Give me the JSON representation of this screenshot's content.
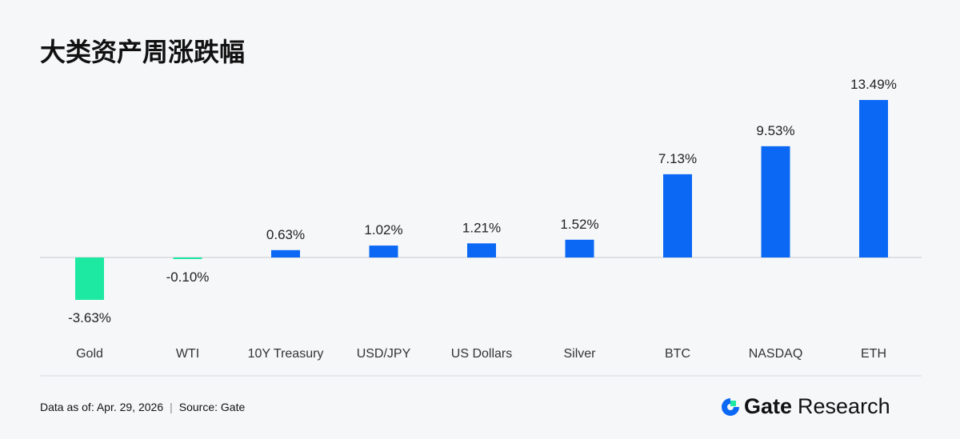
{
  "title": "大类资产周涨跌幅",
  "footer": {
    "date": "Data as of: Apr. 29, 2026",
    "separator": "|",
    "source": "Source:  Gate"
  },
  "logo": {
    "brand": "Gate",
    "suffix": "Research"
  },
  "colors": {
    "positive": "#0a68f4",
    "negative": "#1de9a2"
  },
  "chart_data": {
    "type": "bar",
    "title": "大类资产周涨跌幅",
    "categories": [
      "Gold",
      "WTI",
      "10Y Treasury",
      "USD/JPY",
      "US Dollars",
      "Silver",
      "BTC",
      "NASDAQ",
      "ETH"
    ],
    "values": [
      -3.63,
      -0.1,
      0.63,
      1.02,
      1.21,
      1.52,
      7.13,
      9.53,
      13.49
    ],
    "labels": [
      "-3.63%",
      "-0.10%",
      "0.63%",
      "1.02%",
      "1.21%",
      "1.52%",
      "7.13%",
      "9.53%",
      "13.49%"
    ],
    "xlabel": "",
    "ylabel": "",
    "grid": false
  }
}
